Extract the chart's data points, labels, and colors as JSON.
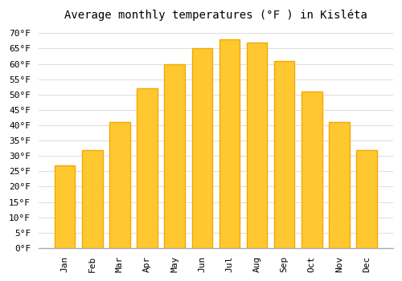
{
  "title": "Average monthly temperatures (°F ) in Kisléta",
  "months": [
    "Jan",
    "Feb",
    "Mar",
    "Apr",
    "May",
    "Jun",
    "Jul",
    "Aug",
    "Sep",
    "Oct",
    "Nov",
    "Dec"
  ],
  "values": [
    27,
    32,
    41,
    52,
    60,
    65,
    68,
    67,
    61,
    51,
    41,
    32
  ],
  "bar_color_center": "#FFC830",
  "bar_color_edge": "#F5A800",
  "background_color": "#FFFFFF",
  "grid_color": "#DDDDDD",
  "ylim": [
    0,
    72
  ],
  "yticks": [
    0,
    5,
    10,
    15,
    20,
    25,
    30,
    35,
    40,
    45,
    50,
    55,
    60,
    65,
    70
  ],
  "ylabel_suffix": "°F",
  "title_fontsize": 10,
  "tick_fontsize": 8,
  "figsize": [
    5.0,
    3.5
  ],
  "dpi": 100
}
